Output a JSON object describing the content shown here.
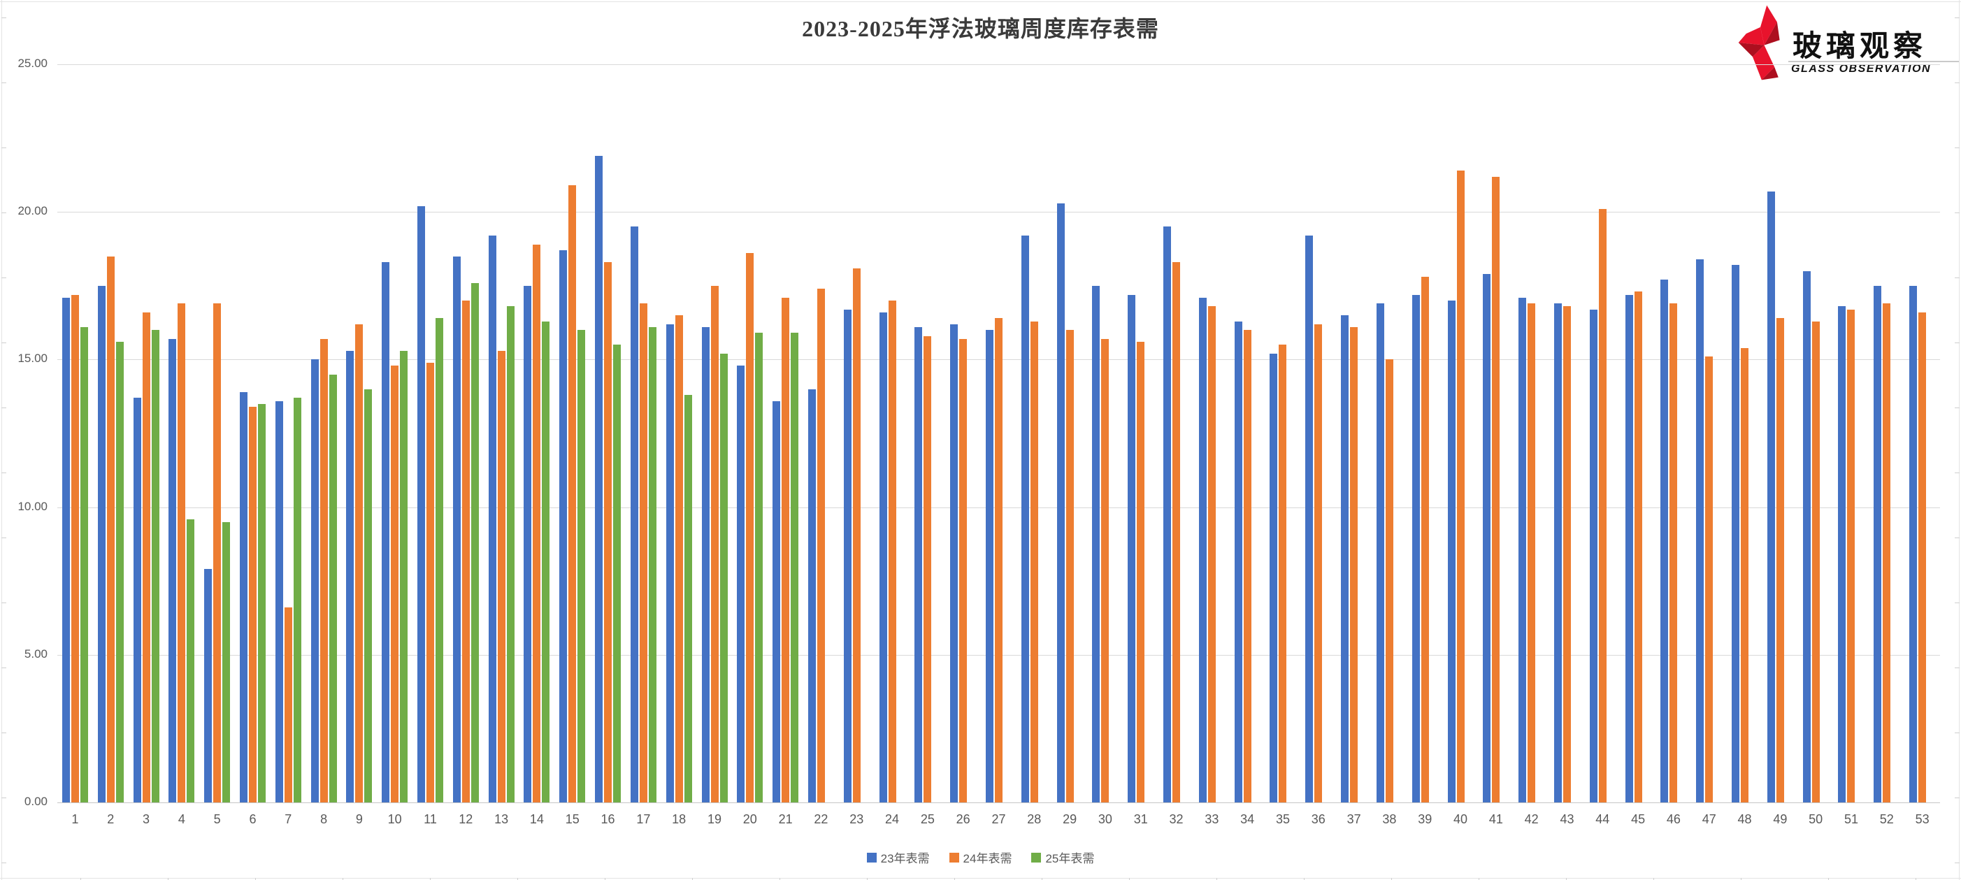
{
  "title": {
    "text": "2023-2025年浮法玻璃周度库存表需"
  },
  "logo": {
    "cn": "玻璃观察",
    "en": "GLASS OBSERVATION",
    "red": "#e8132c",
    "red_dark": "#ad0f1f"
  },
  "chart_data": {
    "type": "bar",
    "title": "2023-2025年浮法玻璃周度库存表需",
    "categories": [
      "1",
      "2",
      "3",
      "4",
      "5",
      "6",
      "7",
      "8",
      "9",
      "10",
      "11",
      "12",
      "13",
      "14",
      "15",
      "16",
      "17",
      "18",
      "19",
      "20",
      "21",
      "22",
      "23",
      "24",
      "25",
      "26",
      "27",
      "28",
      "29",
      "30",
      "31",
      "32",
      "33",
      "34",
      "35",
      "36",
      "37",
      "38",
      "39",
      "40",
      "41",
      "42",
      "43",
      "44",
      "45",
      "46",
      "47",
      "48",
      "49",
      "50",
      "51",
      "52",
      "53"
    ],
    "series": [
      {
        "name": "23年表需",
        "color": "#4472C4",
        "values": [
          17.1,
          17.5,
          13.7,
          15.7,
          7.9,
          13.9,
          13.6,
          15.0,
          15.3,
          18.3,
          20.2,
          18.5,
          19.2,
          17.5,
          18.7,
          21.9,
          19.5,
          16.2,
          16.1,
          14.8,
          13.6,
          14.0,
          16.7,
          16.6,
          16.1,
          16.2,
          16.0,
          19.2,
          20.3,
          17.5,
          17.2,
          19.5,
          17.1,
          16.3,
          15.2,
          19.2,
          16.5,
          16.9,
          17.2,
          17.0,
          17.9,
          17.1,
          16.9,
          16.7,
          17.2,
          17.7,
          18.4,
          18.2,
          20.7,
          18.0,
          16.8,
          17.5,
          17.5
        ]
      },
      {
        "name": "24年表需",
        "color": "#ED7D31",
        "values": [
          17.2,
          18.5,
          16.6,
          16.9,
          16.9,
          13.4,
          6.6,
          15.7,
          16.2,
          14.8,
          14.9,
          17.0,
          15.3,
          18.9,
          20.9,
          18.3,
          16.9,
          16.5,
          17.5,
          18.6,
          17.1,
          17.4,
          18.1,
          17.0,
          15.8,
          15.7,
          16.4,
          16.3,
          16.0,
          15.7,
          15.6,
          18.3,
          16.8,
          16.0,
          15.5,
          16.2,
          16.1,
          15.0,
          17.8,
          21.4,
          21.2,
          16.9,
          16.8,
          20.1,
          17.3,
          16.9,
          15.1,
          15.4,
          16.4,
          16.3,
          16.7,
          16.9,
          16.6
        ]
      },
      {
        "name": "25年表需",
        "color": "#70AD47",
        "values": [
          16.1,
          15.6,
          16.0,
          9.6,
          9.5,
          13.5,
          13.7,
          14.5,
          14.0,
          15.3,
          16.4,
          17.6,
          16.8,
          16.3,
          16.0,
          15.5,
          16.1,
          13.8,
          15.2,
          15.9,
          15.9,
          null,
          null,
          null,
          null,
          null,
          null,
          null,
          null,
          null,
          null,
          null,
          null,
          null,
          null,
          null,
          null,
          null,
          null,
          null,
          null,
          null,
          null,
          null,
          null,
          null,
          null,
          null,
          null,
          null,
          null,
          null,
          null
        ]
      }
    ],
    "xlabel": "",
    "ylabel": "",
    "ylim": [
      0,
      25
    ],
    "ytick_step": 5,
    "ytick_labels": [
      "0.00",
      "5.00",
      "10.00",
      "15.00",
      "20.00",
      "25.00"
    ],
    "grid": true,
    "legend_position": "bottom",
    "axis_text_color": "#595959",
    "gridline_color": "#D9D9D9"
  }
}
